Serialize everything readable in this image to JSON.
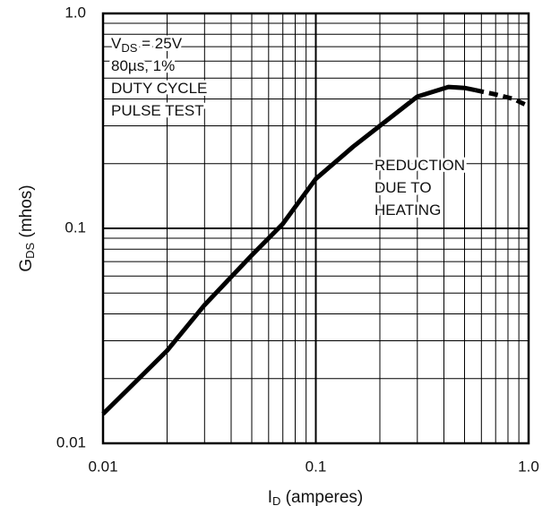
{
  "chart_data": {
    "type": "line",
    "xlabel": {
      "main": "I",
      "sub": "D",
      "rest": " (amperes)"
    },
    "ylabel": {
      "main": "G",
      "sub": "DS",
      "rest": " (mhos)"
    },
    "log_x": true,
    "log_y": true,
    "grid": true,
    "xlim": [
      0.01,
      1
    ],
    "ylim": [
      0.01,
      1
    ],
    "xticks": [
      0.01,
      0.1,
      {
        "value": 1,
        "label": "1.0"
      }
    ],
    "yticks": [
      0.01,
      0.1,
      {
        "value": 1,
        "label": "1.0"
      }
    ],
    "xminor_ticks": [
      0.02,
      0.03,
      0.04,
      0.05,
      0.06,
      0.07,
      0.08,
      0.09,
      0.2,
      0.3,
      0.4,
      0.5,
      0.6,
      0.7,
      0.8,
      0.9
    ],
    "yminor_ticks": [
      0.02,
      0.03,
      0.04,
      0.05,
      0.06,
      0.07,
      0.08,
      0.09,
      0.2,
      0.3,
      0.4,
      0.5,
      0.6,
      0.7,
      0.8,
      0.9
    ],
    "series": [
      {
        "color": "#000000",
        "dashed": false,
        "x": [
          0.01,
          0.02,
          0.03,
          0.05,
          0.07,
          0.1,
          0.15,
          0.2,
          0.3,
          0.42,
          0.5,
          0.56
        ],
        "values": [
          0.0137,
          0.027,
          0.044,
          0.075,
          0.105,
          0.17,
          0.24,
          0.3,
          0.41,
          0.455,
          0.45,
          0.44
        ]
      },
      {
        "color": "#000000",
        "dashed": true,
        "x": [
          0.56,
          0.7,
          0.85,
          1
        ],
        "values": [
          0.44,
          0.42,
          0.4,
          0.37
        ]
      }
    ],
    "annotations": {
      "conditions": [
        {
          "main": "V",
          "sub": "DS",
          "rest": " = 25V"
        },
        {
          "main": "80µs, 1%"
        },
        {
          "main": "DUTY CYCLE"
        },
        {
          "main": "PULSE TEST"
        }
      ],
      "note": [
        {
          "main": "REDUCTION"
        },
        {
          "main": "DUE TO"
        },
        {
          "main": "HEATING"
        }
      ]
    }
  }
}
